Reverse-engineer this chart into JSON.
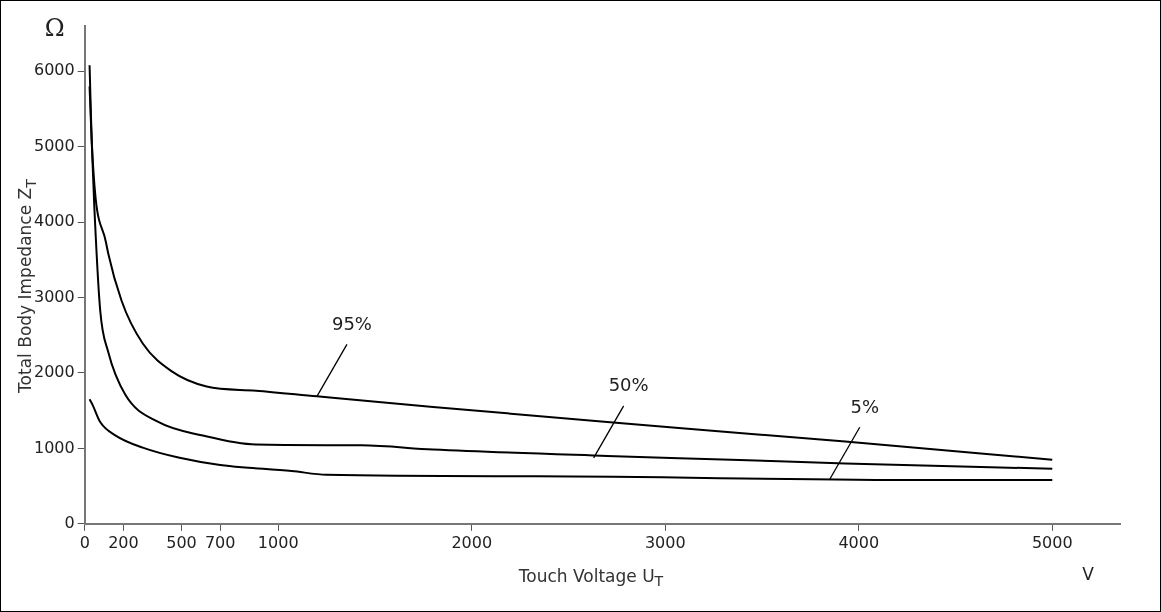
{
  "chart_data": {
    "type": "line",
    "xlabel": "Touch Voltage U$_{T}$",
    "ylabel": "Total Body Impedance Z$_{T}$",
    "xlim": [
      0,
      5350
    ],
    "ylim": [
      0,
      6600
    ],
    "xticks": [
      0,
      200,
      500,
      700,
      1000,
      2000,
      3000,
      4000,
      5000
    ],
    "yticks": [
      0,
      1000,
      2000,
      3000,
      4000,
      5000,
      6000
    ],
    "grid": false,
    "legend": false,
    "marker": "none",
    "line_style": "solid",
    "series": [
      {
        "color": "#000000",
        "x": [
          25,
          38,
          110,
          190,
          300,
          450,
          630,
          885,
          1200,
          1800,
          2700,
          3070,
          3930,
          5000
        ],
        "values": [
          6080,
          4990,
          3730,
          2960,
          2390,
          2020,
          1820,
          1765,
          1690,
          1550,
          1350,
          1270,
          1090,
          850
        ]
      },
      {
        "color": "#000000",
        "x": [
          25,
          50,
          80,
          120,
          210,
          380,
          610,
          885,
          1430,
          1800,
          2700,
          3340,
          3930,
          5000
        ],
        "values": [
          5800,
          4180,
          2830,
          2290,
          1710,
          1350,
          1170,
          1050,
          1040,
          985,
          900,
          850,
          800,
          730
        ]
      },
      {
        "color": "#000000",
        "x": [
          25,
          40,
          80,
          160,
          300,
          490,
          700,
          1070,
          1250,
          2340,
          4350,
          5000
        ],
        "values": [
          1650,
          1580,
          1350,
          1170,
          1010,
          875,
          780,
          700,
          650,
          630,
          580,
          580
        ]
      }
    ],
    "annotations": [
      {
        "text": "95%",
        "x": 1200,
        "y": 1690
      },
      {
        "text": "50%",
        "x": 2630,
        "y": 875
      },
      {
        "text": "5%",
        "x": 3850,
        "y": 590
      },
      "Ω",
      "V"
    ]
  }
}
